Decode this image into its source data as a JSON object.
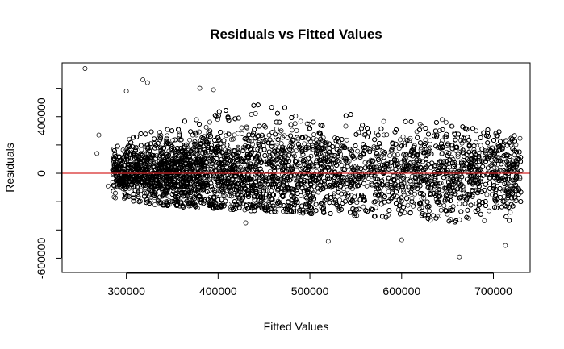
{
  "chart_data": {
    "type": "scatter",
    "title": "Residuals vs Fitted Values",
    "xlabel": "Fitted Values",
    "ylabel": "Residuals",
    "xlim": [
      230000,
      740000
    ],
    "ylim": [
      -700000,
      780000
    ],
    "x_ticks": [
      300000,
      400000,
      500000,
      600000,
      700000
    ],
    "y_ticks": [
      -600000,
      -400000,
      -200000,
      0,
      200000,
      400000,
      600000
    ],
    "y_tick_labels": [
      "-600000",
      "",
      "",
      "0",
      "",
      "400000",
      ""
    ],
    "reference_line": {
      "y": 0,
      "color": "#d62728"
    },
    "marker": "open-circle",
    "points_sample": [
      {
        "x": 255000,
        "y": 740000
      },
      {
        "x": 318000,
        "y": 660000
      },
      {
        "x": 323000,
        "y": 640000
      },
      {
        "x": 300000,
        "y": 580000
      },
      {
        "x": 380000,
        "y": 600000
      },
      {
        "x": 395000,
        "y": 590000
      },
      {
        "x": 270000,
        "y": 270000
      },
      {
        "x": 268000,
        "y": 140000
      },
      {
        "x": 280000,
        "y": -90000
      },
      {
        "x": 663000,
        "y": -590000
      },
      {
        "x": 713000,
        "y": -510000
      },
      {
        "x": 520000,
        "y": -480000
      },
      {
        "x": 430000,
        "y": -350000
      },
      {
        "x": 600000,
        "y": -470000
      }
    ],
    "distribution": {
      "x_range": [
        285000,
        730000
      ],
      "y_min_at_x": [
        [
          285000,
          -170000
        ],
        [
          330000,
          -230000
        ],
        [
          450000,
          -270000
        ],
        [
          550000,
          -300000
        ],
        [
          650000,
          -350000
        ],
        [
          730000,
          -360000
        ]
      ],
      "y_max_at_x": [
        [
          285000,
          170000
        ],
        [
          330000,
          350000
        ],
        [
          400000,
          470000
        ],
        [
          450000,
          520000
        ],
        [
          550000,
          460000
        ],
        [
          650000,
          380000
        ],
        [
          730000,
          260000
        ]
      ],
      "approx_point_count": 14000
    }
  }
}
